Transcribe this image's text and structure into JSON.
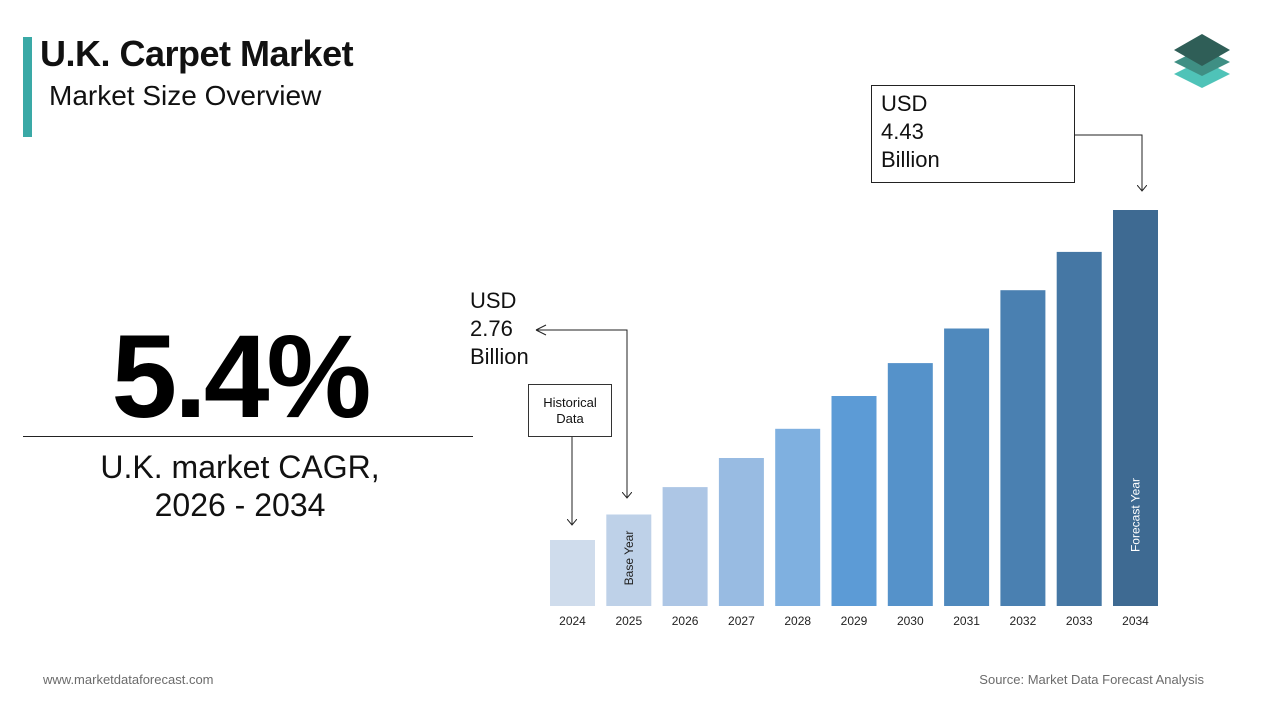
{
  "header": {
    "title": "U.K. Carpet Market",
    "subtitle": "Market Size Overview"
  },
  "highlight": {
    "cagr_value": "5.4%",
    "cagr_label_line1": "U.K.  market CAGR,",
    "cagr_label_line2": "2026 - 2034"
  },
  "callouts": {
    "base": {
      "line1": "USD",
      "line2": "2.76",
      "line3": "Billion"
    },
    "forecast": {
      "line1": "USD",
      "line2": "4.43",
      "line3": "Billion"
    },
    "historical": {
      "line1": "Historical",
      "line2": "Data"
    }
  },
  "chart_data": {
    "type": "bar",
    "categories": [
      "2024",
      "2025",
      "2026",
      "2027",
      "2028",
      "2029",
      "2030",
      "2031",
      "2032",
      "2033",
      "2034"
    ],
    "values": [
      2.62,
      2.76,
      2.91,
      3.07,
      3.23,
      3.41,
      3.59,
      3.78,
      3.99,
      4.2,
      4.43
    ],
    "bar_labels": {
      "1": "Base Year",
      "10": "Forecast Year"
    },
    "colors": [
      "#cfdcec",
      "#bed1e8",
      "#adc6e5",
      "#98bbe2",
      "#7fb0e0",
      "#5c9bd6",
      "#5592ca",
      "#4f89bd",
      "#4a80b1",
      "#4577a4",
      "#3e6a92"
    ],
    "title": "",
    "xlabel": "",
    "ylabel": ""
  },
  "footer": {
    "website": "www.marketdataforecast.com",
    "source": "Source: Market Data Forecast Analysis"
  }
}
